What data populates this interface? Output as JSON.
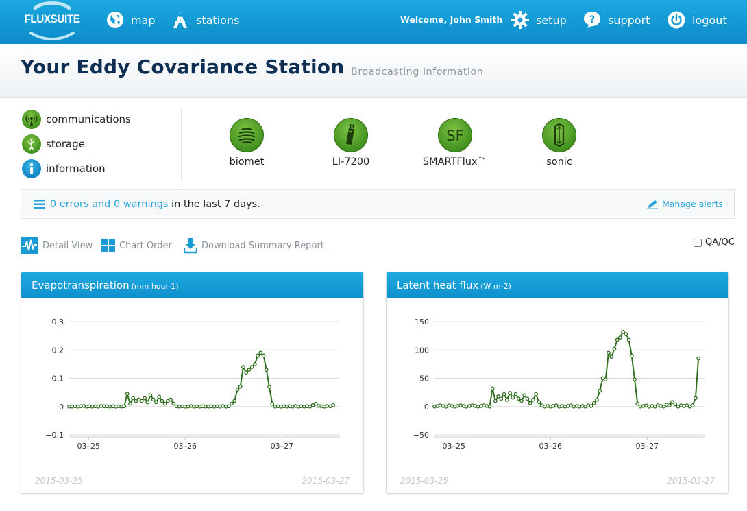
{
  "nav": {
    "logo": "FLUXSUITE",
    "map": "map",
    "stations": "stations",
    "welcome": "Welcome, John Smith",
    "setup": "setup",
    "support": "support",
    "logout": "logout"
  },
  "header": {
    "title": "Your Eddy Covariance Station",
    "subtitle": "Broadcasting Information"
  },
  "sidebar": {
    "items": [
      {
        "label": "communications",
        "icon": "antenna-icon"
      },
      {
        "label": "storage",
        "icon": "usb-icon"
      },
      {
        "label": "information",
        "icon": "info-icon"
      }
    ]
  },
  "devices": [
    {
      "label": "biomet",
      "icon": "biomet-icon"
    },
    {
      "label": "LI-7200",
      "icon": "analyzer-icon"
    },
    {
      "label": "SMARTFlux™",
      "icon": "smartflux-icon"
    },
    {
      "label": "sonic",
      "icon": "sonic-icon"
    }
  ],
  "alerts": {
    "link_text": "0 errors and 0 warnings",
    "suffix": " in the last 7 days.",
    "manage": "Manage alerts"
  },
  "toolbar": {
    "detail_view": "Detail View",
    "chart_order": "Chart Order",
    "download": "Download Summary Report",
    "qaqc": "QA/QC"
  },
  "colors": {
    "nav_blue": "#129bd6",
    "title_navy": "#0f2f52",
    "device_green": "#4f9e26",
    "series_green": "#2f6f1e",
    "link_blue": "#2aa4dc"
  },
  "charts": [
    {
      "title": "Evapotranspiration",
      "unit": "(mm hour-1)",
      "date_start": "2015-03-25",
      "date_end": "2015-03-27"
    },
    {
      "title": "Latent heat flux",
      "unit": "(W m-2)",
      "date_start": "2015-03-25",
      "date_end": "2015-03-27"
    }
  ],
  "chart_data": [
    {
      "type": "line",
      "title": "Evapotranspiration",
      "ylabel": "mm hour-1",
      "ylim": [
        -0.1,
        0.3
      ],
      "yticks": [
        -0.1,
        0,
        0.1,
        0.2,
        0.3
      ],
      "ytick_labels": [
        "−0.1",
        "0",
        "0.1",
        "0.2",
        "0.3"
      ],
      "xlim": [
        0,
        14
      ],
      "xticks": [
        1,
        6,
        11
      ],
      "xtick_labels": [
        "03–25",
        "03–26",
        "03–27"
      ],
      "grid": true,
      "series": [
        {
          "x": [
            0,
            0.15,
            0.3,
            0.45,
            0.6,
            0.75,
            0.9,
            1.05,
            1.2,
            1.35,
            1.5,
            1.65,
            1.8,
            1.95,
            2.1,
            2.25,
            2.4,
            2.55,
            2.7,
            2.85,
            3.0,
            3.15,
            3.3,
            3.45,
            3.6,
            3.75,
            3.9,
            4.05,
            4.2,
            4.35,
            4.5,
            4.65,
            4.8,
            4.95,
            5.1,
            5.25,
            5.4,
            5.55,
            5.7,
            5.85,
            6.0,
            6.15,
            6.3,
            6.45,
            6.6,
            6.75,
            6.9,
            7.05,
            7.2,
            7.35,
            7.5,
            7.65,
            7.8,
            7.95,
            8.1,
            8.25,
            8.4,
            8.55,
            8.7,
            8.85,
            9.0,
            9.15,
            9.3,
            9.45,
            9.6,
            9.75,
            9.9,
            10.05,
            10.2,
            10.35,
            10.5,
            10.65,
            10.8,
            10.95,
            11.1,
            11.25,
            11.4,
            11.55,
            11.7,
            11.85,
            12.0,
            12.15,
            12.3,
            12.45,
            12.6,
            12.75,
            12.9,
            13.05,
            13.2,
            13.35,
            13.5,
            13.65
          ],
          "y": [
            0,
            0,
            0.001,
            0,
            0.001,
            0.002,
            0,
            0.001,
            0,
            0.001,
            0,
            0.002,
            0.001,
            0.001,
            0,
            0.001,
            0,
            0.001,
            0,
            0.001,
            0.045,
            0.01,
            0.03,
            0.02,
            0.025,
            0.02,
            0.03,
            0.015,
            0.04,
            0.025,
            0.015,
            0.035,
            0.02,
            0.01,
            0.02,
            0.025,
            0.01,
            0.001,
            0,
            0.001,
            0,
            0,
            0.002,
            0,
            0.001,
            0,
            0.001,
            0,
            0,
            0.001,
            0,
            0.001,
            0,
            0.002,
            0,
            0.001,
            0.01,
            0.02,
            0.06,
            0.07,
            0.14,
            0.12,
            0.13,
            0.14,
            0.15,
            0.18,
            0.19,
            0.18,
            0.13,
            0.07,
            0.01,
            0,
            0.001,
            0,
            0.001,
            0,
            0.001,
            0,
            0.002,
            0,
            0.001,
            0,
            0.001,
            0,
            0.005,
            0.01,
            0.002,
            0.001,
            0,
            0.002,
            0.001,
            0.005
          ]
        }
      ]
    },
    {
      "type": "line",
      "title": "Latent heat flux",
      "ylabel": "W m-2",
      "ylim": [
        -50,
        150
      ],
      "yticks": [
        -50,
        0,
        50,
        100,
        150
      ],
      "ytick_labels": [
        "−50",
        "0",
        "50",
        "100",
        "150"
      ],
      "xlim": [
        0,
        14
      ],
      "xticks": [
        1,
        6,
        11
      ],
      "xtick_labels": [
        "03–25",
        "03–26",
        "03–27"
      ],
      "grid": true,
      "series": [
        {
          "x": [
            0,
            0.15,
            0.3,
            0.45,
            0.6,
            0.75,
            0.9,
            1.05,
            1.2,
            1.35,
            1.5,
            1.65,
            1.8,
            1.95,
            2.1,
            2.25,
            2.4,
            2.55,
            2.7,
            2.85,
            3.0,
            3.15,
            3.3,
            3.45,
            3.6,
            3.75,
            3.9,
            4.05,
            4.2,
            4.35,
            4.5,
            4.65,
            4.8,
            4.95,
            5.1,
            5.25,
            5.4,
            5.55,
            5.7,
            5.85,
            6.0,
            6.15,
            6.3,
            6.45,
            6.6,
            6.75,
            6.9,
            7.05,
            7.2,
            7.35,
            7.5,
            7.65,
            7.8,
            7.95,
            8.1,
            8.25,
            8.4,
            8.55,
            8.7,
            8.85,
            9.0,
            9.15,
            9.3,
            9.45,
            9.6,
            9.75,
            9.9,
            10.05,
            10.2,
            10.35,
            10.5,
            10.65,
            10.8,
            10.95,
            11.1,
            11.25,
            11.4,
            11.55,
            11.7,
            11.85,
            12.0,
            12.15,
            12.3,
            12.45,
            12.6,
            12.75,
            12.9,
            13.05,
            13.2,
            13.35,
            13.5,
            13.65
          ],
          "y": [
            0,
            1,
            2,
            1,
            0,
            2,
            1,
            0,
            1,
            2,
            1,
            0,
            1,
            2,
            1,
            0,
            1,
            2,
            1,
            0,
            32,
            10,
            18,
            14,
            22,
            12,
            24,
            16,
            22,
            14,
            10,
            20,
            14,
            6,
            12,
            22,
            8,
            2,
            0,
            1,
            0,
            1,
            2,
            0,
            1,
            0,
            1,
            2,
            0,
            1,
            0,
            1,
            0,
            2,
            1,
            6,
            12,
            28,
            50,
            48,
            95,
            88,
            102,
            118,
            122,
            132,
            128,
            118,
            90,
            48,
            5,
            0,
            1,
            2,
            0,
            1,
            0,
            2,
            1,
            0,
            3,
            2,
            8,
            4,
            0,
            2,
            1,
            2,
            0,
            2,
            15,
            85
          ]
        }
      ]
    }
  ]
}
